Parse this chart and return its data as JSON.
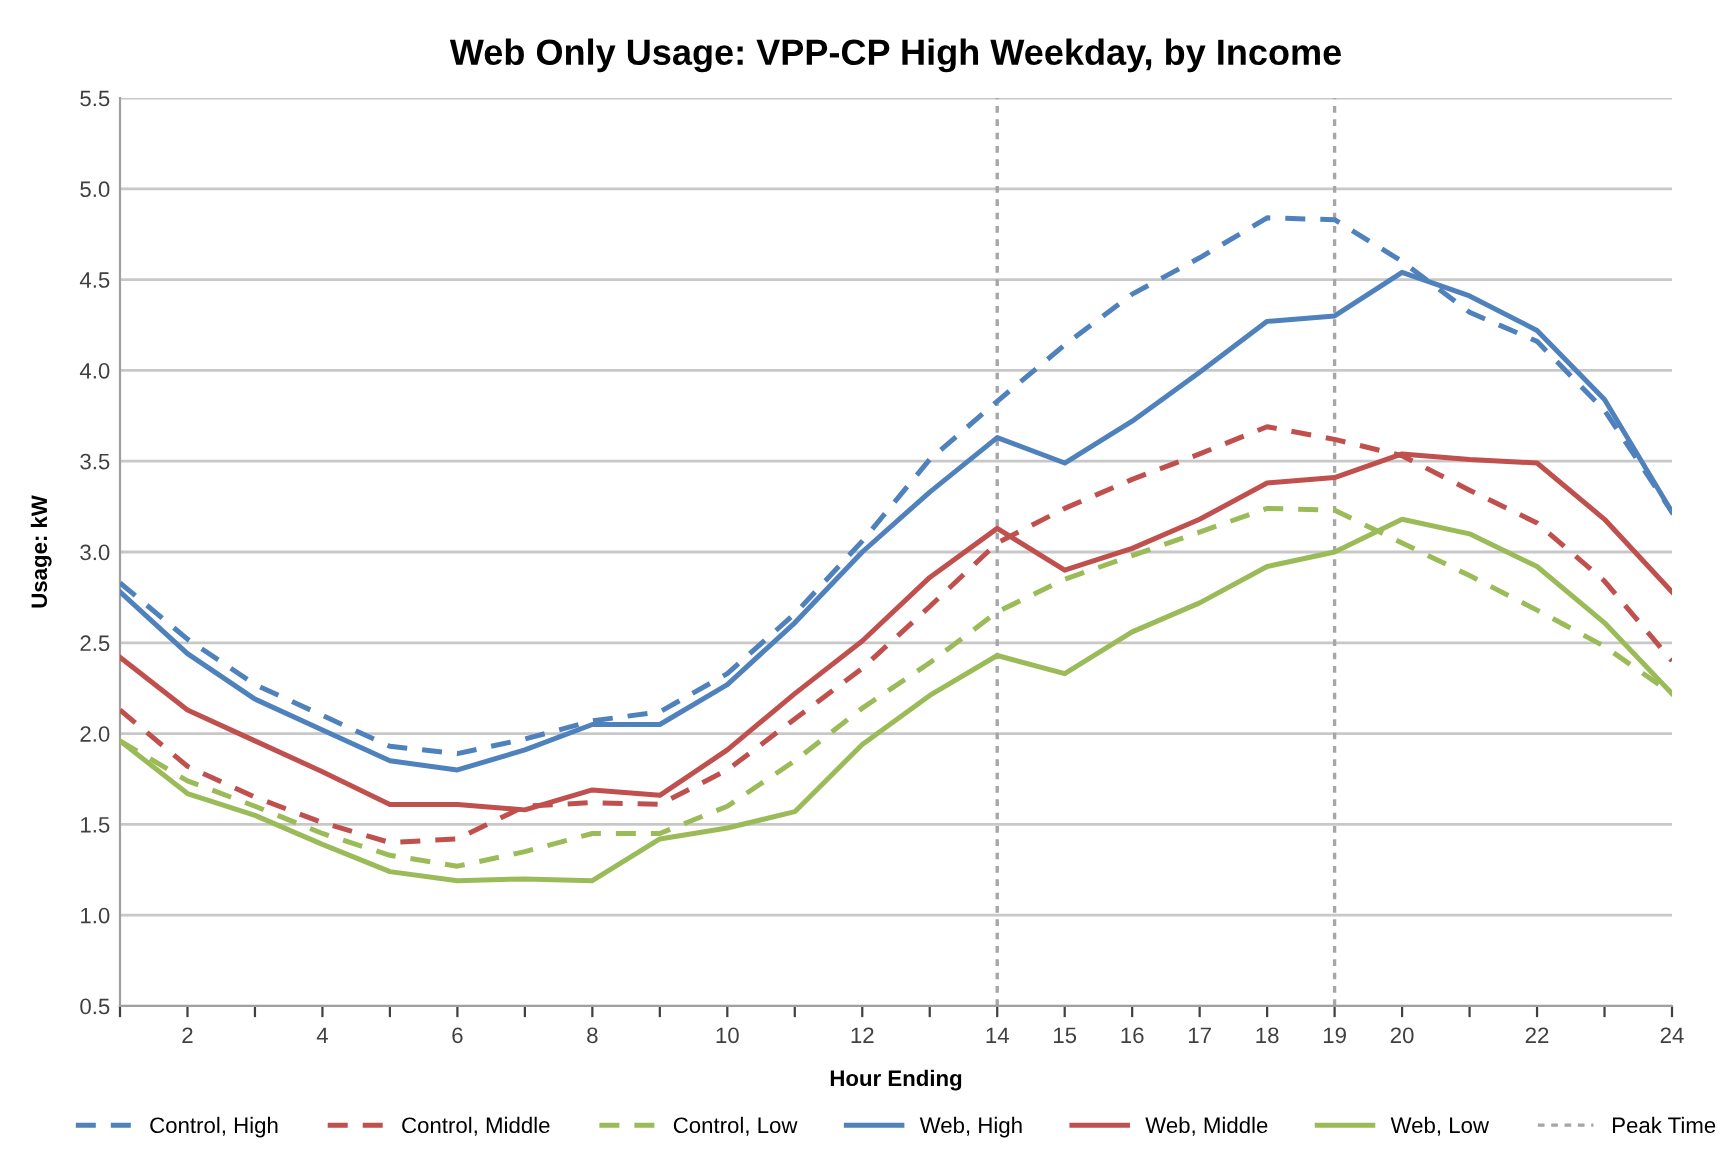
{
  "chart_data": {
    "type": "line",
    "title": "Web Only Usage: VPP-CP High Weekday, by Income",
    "xlabel": "Hour Ending",
    "ylabel": "Usage: kW",
    "x": [
      1,
      2,
      3,
      4,
      5,
      6,
      7,
      8,
      9,
      10,
      11,
      12,
      13,
      14,
      15,
      16,
      17,
      18,
      19,
      20,
      21,
      22,
      23,
      24
    ],
    "series": [
      {
        "name": "Control, High",
        "color": "#4f81bd",
        "line_style": "dashed",
        "values": [
          2.83,
          2.52,
          2.27,
          2.1,
          1.93,
          1.89,
          1.97,
          2.07,
          2.12,
          2.33,
          2.66,
          3.06,
          3.51,
          3.83,
          4.14,
          4.42,
          4.62,
          4.84,
          4.83,
          4.6,
          4.32,
          4.16,
          3.78,
          3.22
        ]
      },
      {
        "name": "Control, Middle",
        "color": "#c0504d",
        "line_style": "dashed",
        "values": [
          2.13,
          1.82,
          1.65,
          1.51,
          1.4,
          1.42,
          1.6,
          1.62,
          1.61,
          1.8,
          2.08,
          2.36,
          2.7,
          3.05,
          3.24,
          3.4,
          3.54,
          3.69,
          3.62,
          3.53,
          3.34,
          3.16,
          2.84,
          2.4
        ]
      },
      {
        "name": "Control, Low",
        "color": "#9bbb59",
        "line_style": "dashed",
        "values": [
          1.96,
          1.74,
          1.6,
          1.45,
          1.33,
          1.27,
          1.35,
          1.45,
          1.45,
          1.6,
          1.85,
          2.14,
          2.39,
          2.67,
          2.85,
          2.98,
          3.11,
          3.24,
          3.23,
          3.05,
          2.87,
          2.68,
          2.48,
          2.22
        ]
      },
      {
        "name": "Web, High",
        "color": "#4f81bd",
        "line_style": "solid",
        "values": [
          2.78,
          2.44,
          2.19,
          2.02,
          1.85,
          1.8,
          1.91,
          2.05,
          2.05,
          2.27,
          2.61,
          3.0,
          3.33,
          3.63,
          3.49,
          3.72,
          3.99,
          4.27,
          4.3,
          4.54,
          4.41,
          4.22,
          3.84,
          3.22
        ]
      },
      {
        "name": "Web, Middle",
        "color": "#c0504d",
        "line_style": "solid",
        "values": [
          2.42,
          2.13,
          1.96,
          1.79,
          1.61,
          1.61,
          1.58,
          1.69,
          1.66,
          1.91,
          2.22,
          2.51,
          2.86,
          3.13,
          2.9,
          3.02,
          3.18,
          3.38,
          3.41,
          3.54,
          3.51,
          3.49,
          3.18,
          2.78
        ]
      },
      {
        "name": "Web, Low",
        "color": "#9bbb59",
        "line_style": "solid",
        "values": [
          1.96,
          1.67,
          1.55,
          1.39,
          1.24,
          1.19,
          1.2,
          1.19,
          1.42,
          1.48,
          1.57,
          1.94,
          2.21,
          2.43,
          2.33,
          2.56,
          2.72,
          2.92,
          3.0,
          3.18,
          3.1,
          2.92,
          2.61,
          2.22
        ]
      }
    ],
    "ref_lines": [
      {
        "axis": "x",
        "value": 14,
        "label": "Peak Time",
        "color": "#a6a6a6",
        "line_style": "dashed"
      },
      {
        "axis": "x",
        "value": 19,
        "color": "#a6a6a6",
        "line_style": "dashed"
      }
    ],
    "xlim": [
      1,
      24
    ],
    "xticks": [
      {
        "value": 1,
        "label": null
      },
      2,
      {
        "value": 3,
        "label": null
      },
      4,
      {
        "value": 5,
        "label": null
      },
      6,
      {
        "value": 7,
        "label": null
      },
      8,
      {
        "value": 9,
        "label": null
      },
      10,
      {
        "value": 11,
        "label": null
      },
      12,
      {
        "value": 13,
        "label": null
      },
      14,
      15,
      16,
      17,
      18,
      19,
      20,
      {
        "value": 21,
        "label": null
      },
      22,
      {
        "value": 23,
        "label": null
      },
      24
    ],
    "ylim": [
      0.5,
      5.5
    ],
    "yticks": [
      {
        "value": 0.5,
        "label": "0.5"
      },
      {
        "value": 1,
        "label": "1.0"
      },
      {
        "value": 1.5,
        "label": "1.5"
      },
      {
        "value": 2,
        "label": "2.0"
      },
      {
        "value": 2.5,
        "label": "2.5"
      },
      {
        "value": 3,
        "label": "3.0"
      },
      {
        "value": 3.5,
        "label": "3.5"
      },
      {
        "value": 4,
        "label": "4.0"
      },
      {
        "value": 4.5,
        "label": "4.5"
      },
      {
        "value": 5,
        "label": "5.0"
      },
      {
        "value": 5.5,
        "label": "5.5"
      }
    ],
    "grid": "y",
    "legend": "bottom",
    "marker": "none"
  }
}
